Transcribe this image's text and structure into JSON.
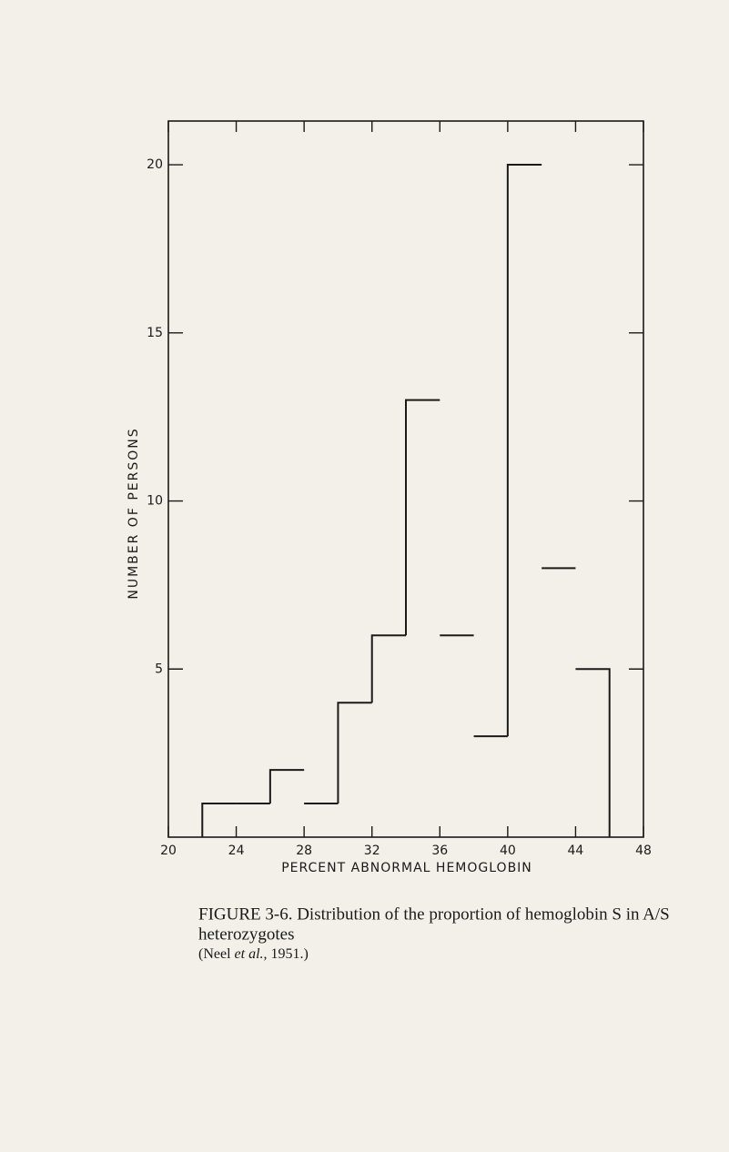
{
  "chart_data": {
    "type": "histogram",
    "xlabel": "PERCENT ABNORMAL HEMOGLOBIN",
    "ylabel": "NUMBER OF PERSONS",
    "bins": [
      22,
      24,
      26,
      28,
      30,
      32,
      34,
      36,
      38,
      40,
      42,
      44,
      46
    ],
    "values": [
      1,
      1,
      2,
      1,
      4,
      6,
      13,
      6,
      3,
      20,
      8,
      5
    ],
    "color": "#1a1a1a",
    "xlim": [
      20,
      48
    ],
    "xticks": [
      20,
      24,
      28,
      32,
      36,
      40,
      44,
      48
    ],
    "ylim": [
      0,
      21.3
    ],
    "yticks": [
      5,
      10,
      15,
      20
    ],
    "grid": false
  },
  "caption": {
    "lines": [
      "FIGURE 3-6. Distribution of the proportion of hemoglobin S in A/S",
      "heterozygotes"
    ],
    "citation": [
      "(Neel ",
      "et al.",
      ", 1951.)"
    ]
  }
}
